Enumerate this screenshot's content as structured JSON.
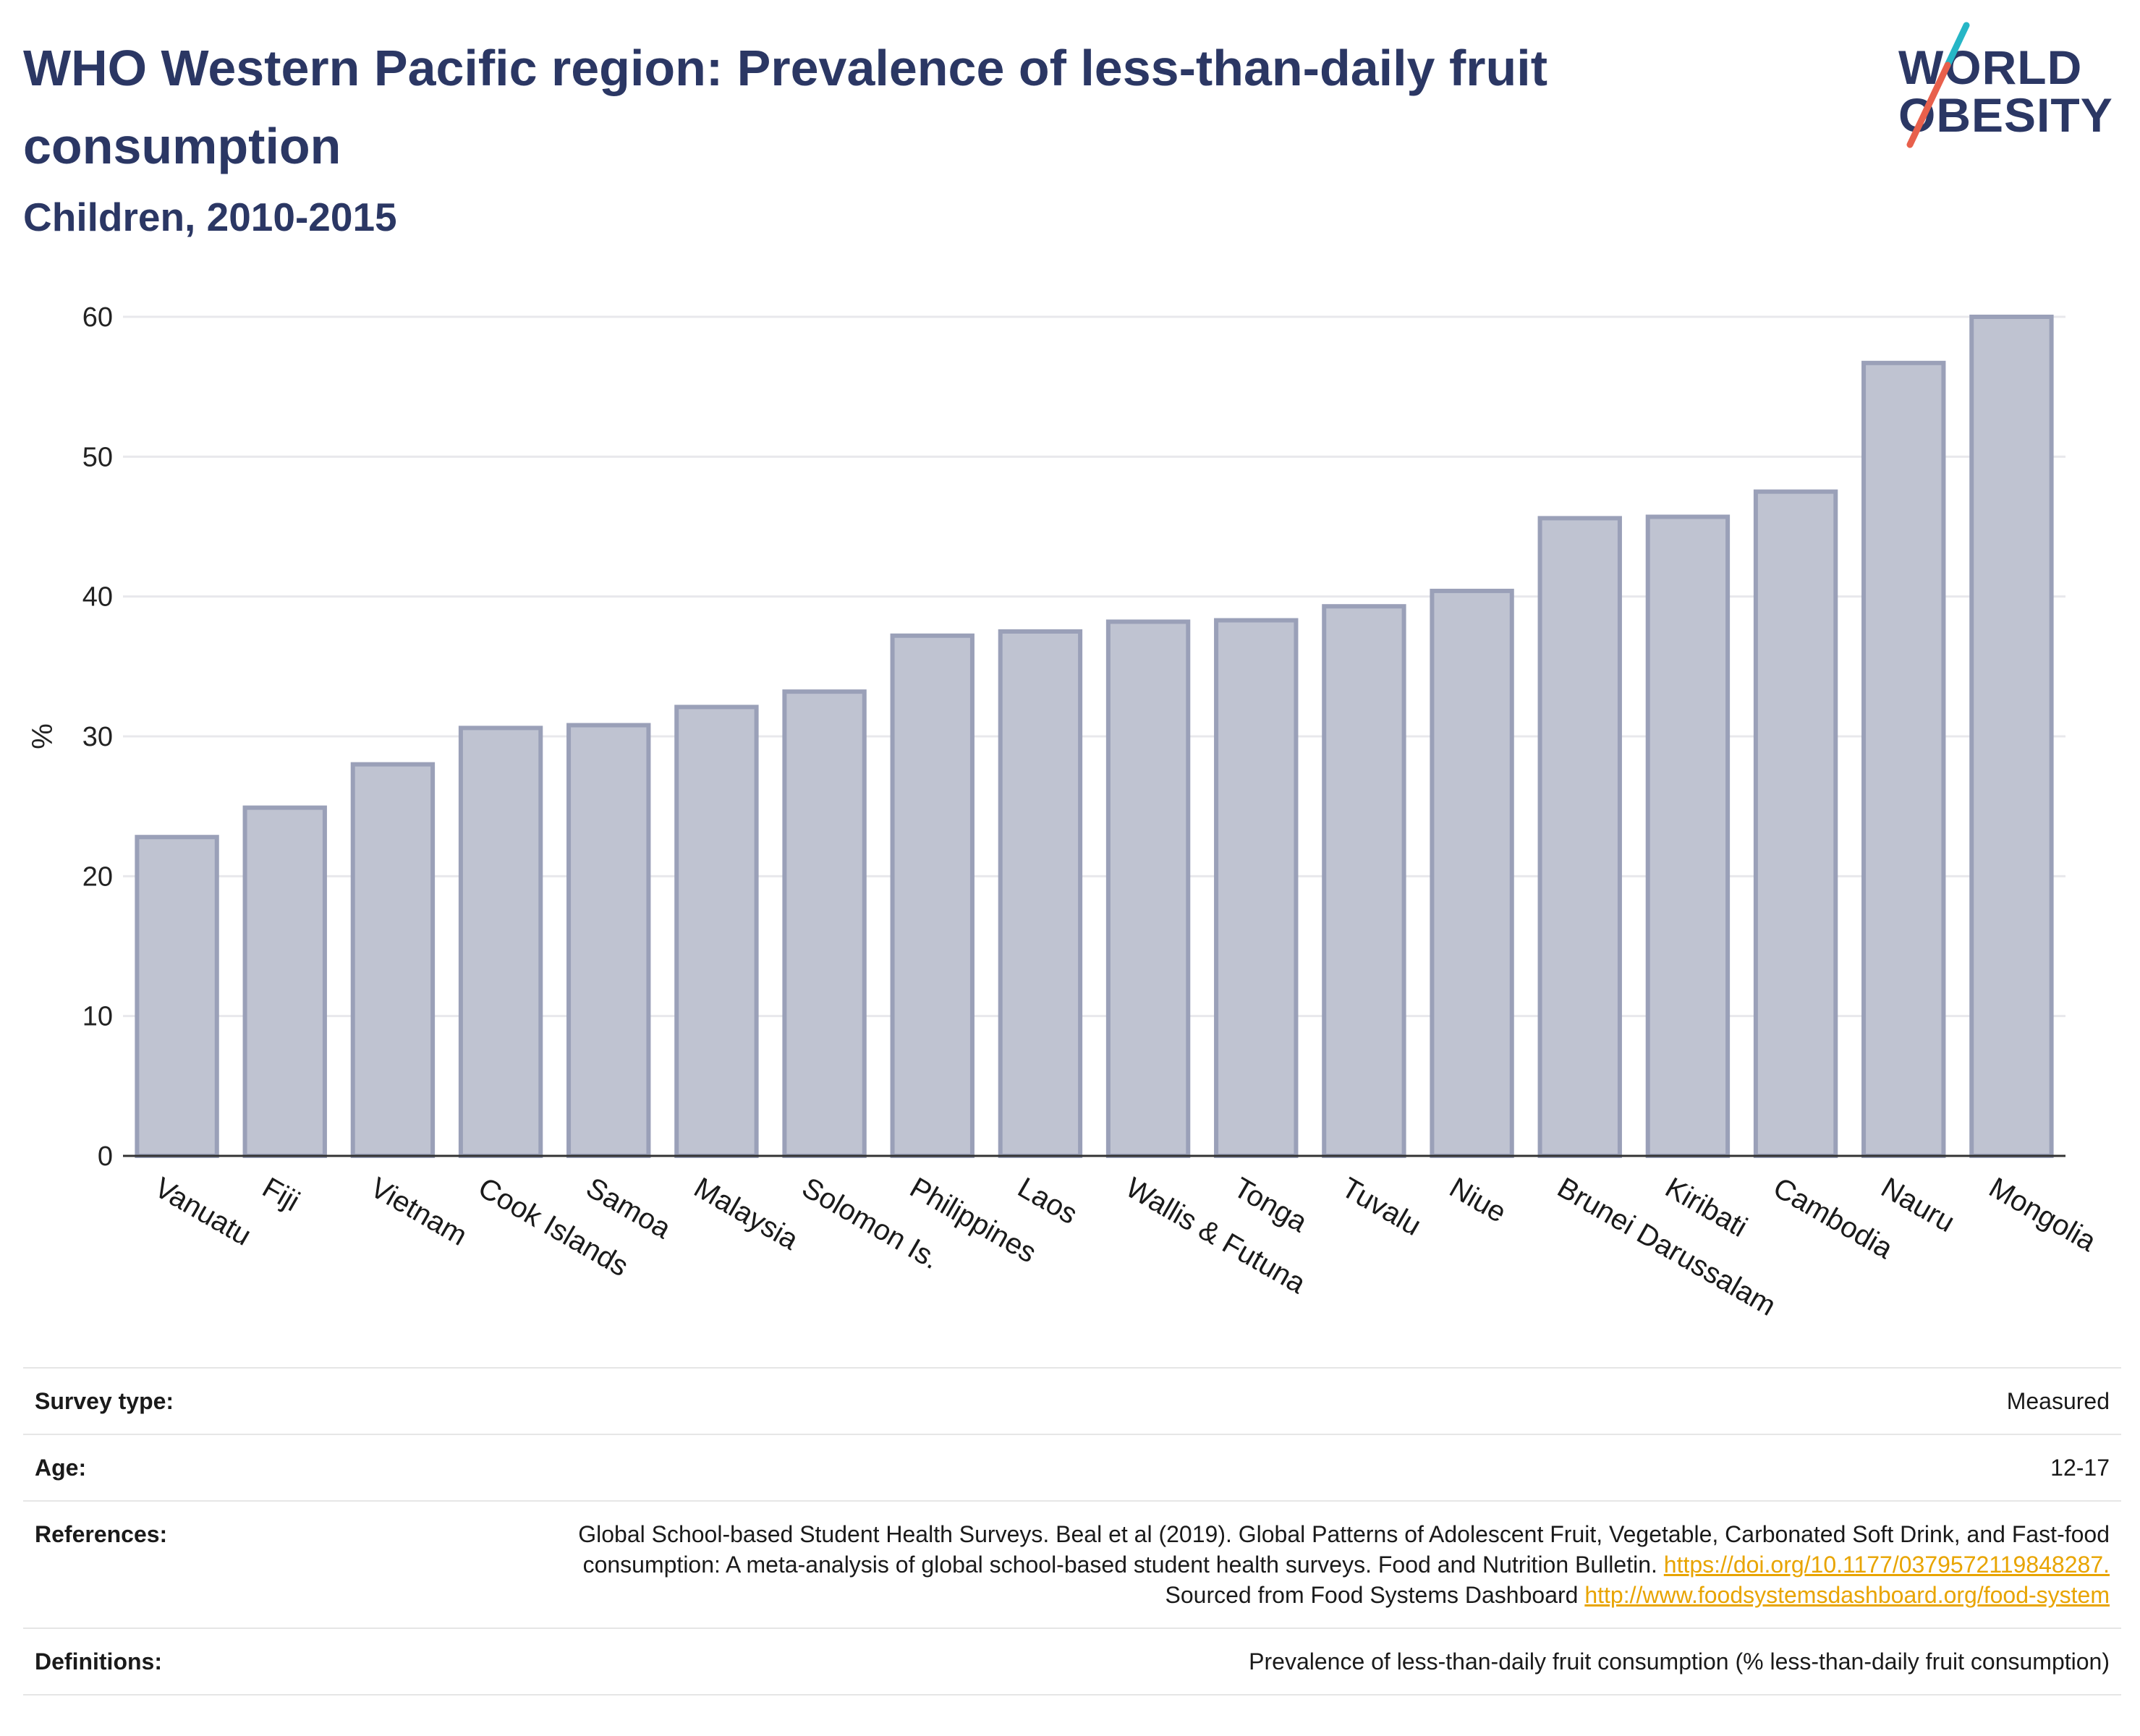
{
  "header": {
    "title": "WHO Western Pacific region: Prevalence of less-than-daily fruit consumption",
    "subtitle": "Children, 2010-2015"
  },
  "logo": {
    "line1": "WORLD",
    "line2": "OBESITY",
    "colors": {
      "text": "#2b3764",
      "slash_top": "#26b6c6",
      "slash_bottom": "#e8604c"
    }
  },
  "chart_data": {
    "type": "bar",
    "ylabel": "%",
    "xlabel": "",
    "ylim": [
      0,
      60
    ],
    "yticks": [
      "0",
      "10",
      "20",
      "30",
      "40",
      "50",
      "60"
    ],
    "grid": true,
    "categories": [
      "Vanuatu",
      "Fiji",
      "Vietnam",
      "Cook Islands",
      "Samoa",
      "Malaysia",
      "Solomon Is.",
      "Philippines",
      "Laos",
      "Wallis & Futuna",
      "Tonga",
      "Tuvalu",
      "Niue",
      "Brunei Darussalam",
      "Kiribati",
      "Cambodia",
      "Nauru",
      "Mongolia"
    ],
    "values": [
      22.8,
      24.9,
      28.0,
      30.6,
      30.8,
      32.1,
      33.2,
      37.2,
      37.5,
      38.2,
      38.3,
      39.3,
      40.4,
      45.6,
      45.7,
      47.5,
      56.7,
      60.0
    ],
    "colors": {
      "bar_fill": "#bfc3d1",
      "bar_stroke": "#9aa0b8",
      "axis": "#333333",
      "grid": "#e8e8ec"
    }
  },
  "meta": {
    "survey_type_label": "Survey type:",
    "survey_type_value": "Measured",
    "age_label": "Age:",
    "age_value": "12-17",
    "references_label": "References:",
    "references_text_1": "Global School-based Student Health Surveys. Beal et al (2019). Global Patterns of Adolescent Fruit, Vegetable, Carbonated Soft Drink, and Fast-food consumption: A meta-analysis of global school-based student health surveys. Food and Nutrition Bulletin.",
    "references_link_1": "https://doi.org/10.1177/0379572119848287.",
    "references_text_2": "Sourced from Food Systems Dashboard",
    "references_link_2": "http://www.foodsystemsdashboard.org/food-system",
    "definitions_label": "Definitions:",
    "definitions_value": "Prevalence of less-than-daily fruit consumption (% less-than-daily fruit consumption)"
  }
}
